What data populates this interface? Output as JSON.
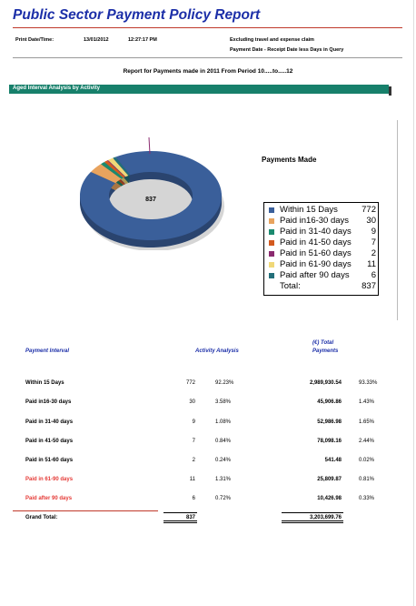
{
  "header": {
    "title": "Public Sector Payment Policy Report",
    "print_label": "Print Date/Time:",
    "print_date": "13/01/2012",
    "print_time": "12:27:17 PM",
    "note1": "Excluding travel and expense claim",
    "note2": "Payment Date - Receipt Date less Days in Query",
    "report_line": "Report for Payments made in 2011 From Period 10.....to.....12"
  },
  "section": {
    "title": "Aged Interval Analysis by Activity"
  },
  "chart_data": {
    "type": "pie",
    "title": "Payments Made",
    "center_label": "837",
    "categories": [
      "Within 15 Days",
      "Paid in16-30 days",
      "Paid in 31-40 days",
      "Paid in 41-50 days",
      "Paid in 51-60 days",
      "Paid in 61-90 days",
      "Paid after 90 days"
    ],
    "values": [
      772,
      30,
      9,
      7,
      2,
      11,
      6
    ],
    "colors": [
      "#3a5f9a",
      "#e8a35e",
      "#1b8a6f",
      "#d35a1f",
      "#8b2a6f",
      "#f0d878",
      "#236f7a"
    ],
    "total_label": "Total:",
    "total": 837,
    "legend_position": "right"
  },
  "table": {
    "headers": {
      "interval": "Payment Interval",
      "activity": "Activity Analysis",
      "total1": "(€) Total",
      "total2": "Payments"
    },
    "rows": [
      {
        "label": "Within 15 Days",
        "count": "772",
        "pct": "92.23%",
        "amount": "2,989,930.54",
        "amount_pct": "93.33%",
        "red": false
      },
      {
        "label": "Paid in16-30 days",
        "count": "30",
        "pct": "3.58%",
        "amount": "45,906.86",
        "amount_pct": "1.43%",
        "red": false
      },
      {
        "label": "Paid in 31-40 days",
        "count": "9",
        "pct": "1.08%",
        "amount": "52,986.98",
        "amount_pct": "1.65%",
        "red": false
      },
      {
        "label": "Paid in 41-50 days",
        "count": "7",
        "pct": "0.84%",
        "amount": "78,098.16",
        "amount_pct": "2.44%",
        "red": false
      },
      {
        "label": "Paid in 51-60 days",
        "count": "2",
        "pct": "0.24%",
        "amount": "541.48",
        "amount_pct": "0.02%",
        "red": false
      },
      {
        "label": "Paid in 61-90 days",
        "count": "11",
        "pct": "1.31%",
        "amount": "25,809.87",
        "amount_pct": "0.81%",
        "red": true
      },
      {
        "label": "Paid after 90 days",
        "count": "6",
        "pct": "0.72%",
        "amount": "10,426.98",
        "amount_pct": "0.33%",
        "red": true
      }
    ],
    "grand_total_label": "Grand Total:",
    "grand_total_count": "837",
    "grand_total_amount": "3,203,699.76"
  }
}
